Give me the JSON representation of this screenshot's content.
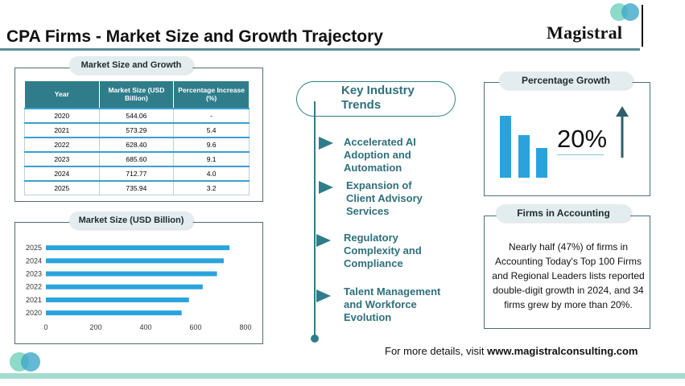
{
  "header": {
    "title": "CPA Firms - Market Size and Growth Trajectory",
    "logo_text": "Magistral"
  },
  "market_size_growth": {
    "title": "Market Size and Growth",
    "columns": [
      "Year",
      "Market Size (USD Billion)",
      "Percentage Increase (%)"
    ],
    "rows": [
      [
        "2020",
        "544.06",
        "-"
      ],
      [
        "2021",
        "573.29",
        "5.4"
      ],
      [
        "2022",
        "628.40",
        "9.6"
      ],
      [
        "2023",
        "685.60",
        "9.1"
      ],
      [
        "2024",
        "712.77",
        "4.0"
      ],
      [
        "2025",
        "735.94",
        "3.2"
      ]
    ]
  },
  "market_size_chart": {
    "title": "Market Size (USD Billion)"
  },
  "chart_data": {
    "type": "bar",
    "orientation": "horizontal",
    "categories": [
      "2025",
      "2024",
      "2023",
      "2022",
      "2021",
      "2020"
    ],
    "values": [
      735.94,
      712.77,
      685.6,
      628.4,
      573.29,
      544.06
    ],
    "title": "Market Size (USD Billion)",
    "xlim": [
      0,
      800
    ],
    "xticks": [
      "0",
      "200",
      "400",
      "600",
      "800"
    ],
    "grid": false,
    "color": "#2aa3dd"
  },
  "trends": {
    "title_line1": "Key Industry",
    "title_line2": "Trends",
    "items": [
      {
        "line1": "Accelerated AI",
        "line2": "Adoption and",
        "line3": "Automation"
      },
      {
        "line1": "Expansion of",
        "line2": "Client Advisory",
        "line3": "Services"
      },
      {
        "line1": "Regulatory",
        "line2": "Complexity and",
        "line3": "Compliance"
      },
      {
        "line1": "Talent Management",
        "line2": "and Workforce",
        "line3": "Evolution"
      }
    ]
  },
  "percentage_growth": {
    "title": "Percentage Growth",
    "value": "20%",
    "icon": "bar-chart-up-arrow-icon"
  },
  "firms": {
    "title": "Firms in Accounting",
    "text": "Nearly half (47%) of firms in Accounting Today's Top 100 Firms and Regional Leaders lists reported double-digit growth in 2024, and 34 firms grew by more than 20%."
  },
  "footer": {
    "prefix": "For more details, visit ",
    "link": "www.magistralconsulting.com"
  },
  "colors": {
    "accent": "#2f7d8a",
    "bar": "#2aa3dd",
    "footer_bar": "#a5dcd0"
  }
}
